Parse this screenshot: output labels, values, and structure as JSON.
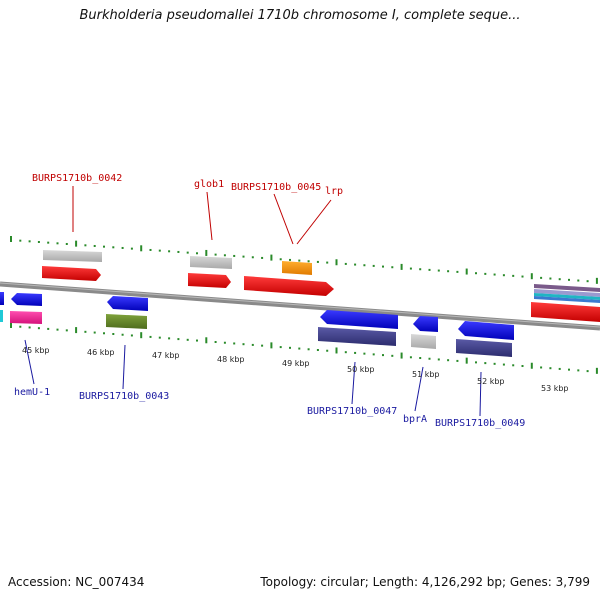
{
  "title": "Burkholderia pseudomallei 1710b chromosome I, complete seque...",
  "accession": "Accession: NC_007434",
  "topology": "Topology: circular; Length: 4,126,292 bp; Genes: 3,799",
  "kbp_labels": [
    "45 kbp",
    "46 kbp",
    "47 kbp",
    "48 kbp",
    "49 kbp",
    "50 kbp",
    "51 kbp",
    "52 kbp",
    "53 kbp"
  ],
  "top_labels": [
    "BURPS1710b_0042",
    "glob1",
    "BURPS1710b_0045",
    "lrp"
  ],
  "bottom_labels": [
    "hemU-1",
    "BURPS1710b_0043",
    "BURPS1710b_0047",
    "bprA",
    "BURPS1710b_0049"
  ],
  "colors": {
    "top_label": "#c00000",
    "bottom_label": "#1a1aa0",
    "tick": "#2a8a2a",
    "backbone": "#777777"
  }
}
